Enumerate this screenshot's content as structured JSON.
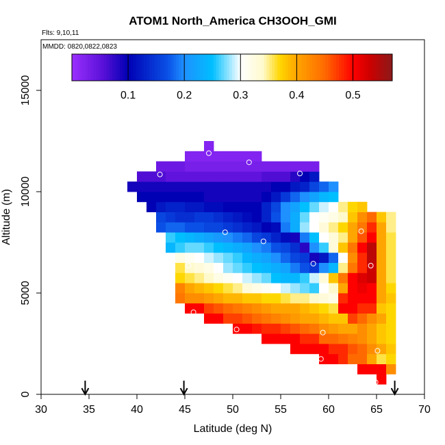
{
  "chart_data": {
    "type": "heatmap",
    "title": "ATOM1 North_America CH3OOH_GMI",
    "annotations": [
      "Flts: 9,10,11",
      "MMDD: 0820,0822,0823"
    ],
    "xlabel": "Latitude (deg N)",
    "ylabel": "Altitude (m)",
    "xlim": [
      30,
      70
    ],
    "ylim": [
      0,
      17500
    ],
    "x_ticks": [
      30,
      35,
      40,
      45,
      50,
      55,
      60,
      65,
      70
    ],
    "x_tick_labels": [
      "30",
      "35",
      "40",
      "45",
      "50",
      "55",
      "60",
      "65",
      "70"
    ],
    "y_ticks": [
      0,
      5000,
      10000,
      15000
    ],
    "y_tick_labels": [
      "0",
      "5000",
      "10000",
      "15000"
    ],
    "grid": false,
    "colorbar": {
      "placement": "top",
      "range": [
        0,
        0.57
      ],
      "ticks": [
        0.1,
        0.2,
        0.3,
        0.4,
        0.5
      ],
      "tick_labels": [
        "0.1",
        "0.2",
        "0.3",
        "0.4",
        "0.5"
      ],
      "stops": [
        [
          0.0,
          "#9b30ff"
        ],
        [
          0.055,
          "#5a10d8"
        ],
        [
          0.1,
          "#0000b4"
        ],
        [
          0.17,
          "#0a50e6"
        ],
        [
          0.2,
          "#1e90ff"
        ],
        [
          0.25,
          "#00bfff"
        ],
        [
          0.3,
          "#ffffff"
        ],
        [
          0.34,
          "#fffacd"
        ],
        [
          0.37,
          "#ffd700"
        ],
        [
          0.4,
          "#ffa500"
        ],
        [
          0.45,
          "#ff6a00"
        ],
        [
          0.5,
          "#ff0000"
        ],
        [
          0.53,
          "#cd0000"
        ],
        [
          0.57,
          "#8b1a1a"
        ]
      ]
    },
    "cell_size": {
      "lat": 1.0,
      "alt": 500
    },
    "rows": [
      {
        "alt": 500,
        "lat0": 65.0,
        "values": [
          0.5
        ]
      },
      {
        "alt": 1000,
        "lat0": 63.0,
        "values": [
          0.5,
          0.5,
          0.5,
          0.42
        ]
      },
      {
        "alt": 1500,
        "lat0": 59.0,
        "values": [
          0.5,
          0.5,
          0.48,
          0.45,
          0.45,
          0.4,
          0.36,
          0.37
        ]
      },
      {
        "alt": 2000,
        "lat0": 56.0,
        "values": [
          0.5,
          0.5,
          0.5,
          0.5,
          0.48,
          0.48,
          0.46,
          0.45,
          0.42,
          0.4,
          0.38
        ]
      },
      {
        "alt": 2500,
        "lat0": 53.0,
        "values": [
          0.5,
          0.5,
          0.5,
          0.5,
          0.48,
          0.48,
          0.45,
          0.45,
          0.44,
          0.43,
          0.42,
          0.4,
          0.38,
          0.37
        ]
      },
      {
        "alt": 3000,
        "lat0": 50.0,
        "values": [
          0.5,
          0.5,
          0.49,
          0.48,
          0.48,
          0.47,
          0.46,
          0.45,
          0.44,
          0.42,
          0.41,
          0.4,
          0.4,
          0.42,
          0.4,
          0.38,
          0.37
        ]
      },
      {
        "alt": 3500,
        "lat0": 47.0,
        "values": [
          0.5,
          0.5,
          0.47,
          0.47,
          0.46,
          0.45,
          0.44,
          0.43,
          0.42,
          0.41,
          0.4,
          0.4,
          0.39,
          0.38,
          0.38,
          0.47,
          0.45,
          0.42,
          0.4,
          0.37
        ]
      },
      {
        "alt": 4000,
        "lat0": 45.0,
        "values": [
          0.5,
          0.5,
          0.47,
          0.46,
          0.45,
          0.44,
          0.43,
          0.42,
          0.41,
          0.4,
          0.4,
          0.4,
          0.39,
          0.38,
          0.37,
          0.36,
          0.5,
          0.5,
          0.48,
          0.48,
          0.38,
          0.37
        ]
      },
      {
        "alt": 4500,
        "lat0": 44.0,
        "values": [
          0.44,
          0.42,
          0.42,
          0.41,
          0.4,
          0.39,
          0.39,
          0.38,
          0.38,
          0.37,
          0.37,
          0.36,
          0.35,
          0.35,
          0.34,
          0.33,
          0.32,
          0.48,
          0.5,
          0.5,
          0.5,
          0.4,
          0.38
        ]
      },
      {
        "alt": 5000,
        "lat0": 44.0,
        "values": [
          0.43,
          0.4,
          0.39,
          0.38,
          0.37,
          0.36,
          0.35,
          0.33,
          0.32,
          0.31,
          0.3,
          0.29,
          0.28,
          0.27,
          0.26,
          0.3,
          0.34,
          0.4,
          0.5,
          0.51,
          0.5,
          0.4,
          0.37
        ]
      },
      {
        "alt": 5500,
        "lat0": 44.0,
        "values": [
          0.37,
          0.36,
          0.35,
          0.34,
          0.32,
          0.31,
          0.3,
          0.29,
          0.28,
          0.27,
          0.25,
          0.24,
          0.24,
          0.26,
          0.29,
          0.33,
          0.38,
          0.44,
          0.5,
          0.52,
          0.53,
          0.4,
          0.36
        ]
      },
      {
        "alt": 6000,
        "lat0": 44.0,
        "values": [
          0.36,
          0.34,
          0.33,
          0.32,
          0.3,
          0.28,
          0.27,
          0.26,
          0.25,
          0.24,
          0.23,
          0.22,
          0.19,
          0.17,
          0.15,
          0.2,
          0.24,
          0.35,
          0.44,
          0.48,
          0.53,
          0.4,
          0.36
        ]
      },
      {
        "alt": 6500,
        "lat0": 44.0,
        "values": [
          0.32,
          0.31,
          0.3,
          0.29,
          0.28,
          0.27,
          0.26,
          0.24,
          0.23,
          0.22,
          0.2,
          0.18,
          0.16,
          0.15,
          0.09,
          0.12,
          0.18,
          0.3,
          0.42,
          0.48,
          0.54,
          0.4,
          0.36
        ]
      },
      {
        "alt": 7000,
        "lat0": 43.0,
        "values": [
          0.24,
          0.26,
          0.27,
          0.27,
          0.26,
          0.25,
          0.24,
          0.23,
          0.22,
          0.2,
          0.19,
          0.17,
          0.16,
          0.14,
          0.08,
          0.2,
          0.26,
          0.33,
          0.38,
          0.44,
          0.5,
          0.54,
          0.4,
          0.36
        ]
      },
      {
        "alt": 7500,
        "lat0": 43.0,
        "values": [
          0.26,
          0.25,
          0.24,
          0.23,
          0.22,
          0.21,
          0.2,
          0.19,
          0.18,
          0.16,
          0.15,
          0.13,
          0.11,
          0.09,
          0.19,
          0.25,
          0.3,
          0.33,
          0.35,
          0.4,
          0.46,
          0.5,
          0.4,
          0.36
        ]
      },
      {
        "alt": 8000,
        "lat0": 42.0,
        "values": [
          0.17,
          0.18,
          0.18,
          0.17,
          0.17,
          0.16,
          0.16,
          0.15,
          0.14,
          0.13,
          0.12,
          0.1,
          0.11,
          0.19,
          0.23,
          0.28,
          0.3,
          0.33,
          0.35,
          0.37,
          0.4,
          0.44,
          0.48,
          0.4,
          0.35
        ]
      },
      {
        "alt": 8500,
        "lat0": 42.0,
        "values": [
          0.16,
          0.15,
          0.14,
          0.14,
          0.15,
          0.15,
          0.14,
          0.13,
          0.12,
          0.11,
          0.1,
          0.13,
          0.17,
          0.2,
          0.23,
          0.27,
          0.3,
          0.31,
          0.32,
          0.34,
          0.38,
          0.42,
          0.45,
          0.38,
          0.35
        ]
      },
      {
        "alt": 9000,
        "lat0": 41.0,
        "values": [
          0.1,
          0.12,
          0.13,
          0.13,
          0.12,
          0.12,
          0.11,
          0.11,
          0.1,
          0.1,
          0.1,
          0.1,
          0.13,
          0.16,
          0.2,
          0.22,
          0.25,
          0.27,
          0.29,
          0.3,
          0.35,
          0.37,
          0.38
        ]
      },
      {
        "alt": 9500,
        "lat0": 40.0,
        "values": [
          0.1,
          0.1,
          0.1,
          0.1,
          0.1,
          0.1,
          0.1,
          0.09,
          0.09,
          0.09,
          0.09,
          0.09,
          0.09,
          0.1,
          0.12,
          0.15,
          0.18,
          0.2,
          0.22,
          0.24,
          0.25
        ]
      },
      {
        "alt": 10000,
        "lat0": 39.0,
        "values": [
          0.09,
          0.09,
          0.09,
          0.09,
          0.09,
          0.09,
          0.09,
          0.09,
          0.09,
          0.09,
          0.09,
          0.09,
          0.09,
          0.09,
          0.09,
          0.1,
          0.1,
          0.12,
          0.13,
          0.16,
          0.18,
          0.2
        ]
      },
      {
        "alt": 10500,
        "lat0": 40.0,
        "values": [
          0.06,
          0.06,
          0.06,
          0.05,
          0.05,
          0.05,
          0.05,
          0.05,
          0.05,
          0.05,
          0.05,
          0.05,
          0.05,
          0.06,
          0.06,
          0.06,
          0.08,
          0.1,
          0.12
        ]
      },
      {
        "alt": 11000,
        "lat0": 42.0,
        "values": [
          0.04,
          0.04,
          0.04,
          0.03,
          0.03,
          0.03,
          0.03,
          0.03,
          0.03,
          0.03,
          0.03,
          0.03,
          0.03,
          0.03,
          0.03,
          0.03,
          0.03
        ]
      },
      {
        "alt": 11500,
        "lat0": 45.0,
        "values": [
          0.02,
          0.02,
          0.02,
          0.02,
          0.02,
          0.02,
          0.02,
          0.02
        ]
      },
      {
        "alt": 12000,
        "lat0": 47.0,
        "values": [
          0.02
        ]
      }
    ],
    "flight_points": [
      {
        "lat": 39.0,
        "alt": 9600
      },
      {
        "lat": 42.4,
        "alt": 10850
      },
      {
        "lat": 47.5,
        "alt": 11900
      },
      {
        "lat": 51.7,
        "alt": 11450
      },
      {
        "lat": 57.0,
        "alt": 10900
      },
      {
        "lat": 49.2,
        "alt": 8000
      },
      {
        "lat": 53.2,
        "alt": 7550
      },
      {
        "lat": 63.4,
        "alt": 8050
      },
      {
        "lat": 58.4,
        "alt": 6450
      },
      {
        "lat": 64.4,
        "alt": 6350
      },
      {
        "lat": 45.4,
        "alt": 6350
      },
      {
        "lat": 45.9,
        "alt": 4050
      },
      {
        "lat": 50.4,
        "alt": 3200
      },
      {
        "lat": 59.4,
        "alt": 3050
      },
      {
        "lat": 65.1,
        "alt": 2150
      },
      {
        "lat": 59.2,
        "alt": 1750
      },
      {
        "lat": 64.9,
        "alt": 600
      }
    ],
    "arrows_lat": [
      34.6,
      44.9,
      66.9
    ]
  }
}
